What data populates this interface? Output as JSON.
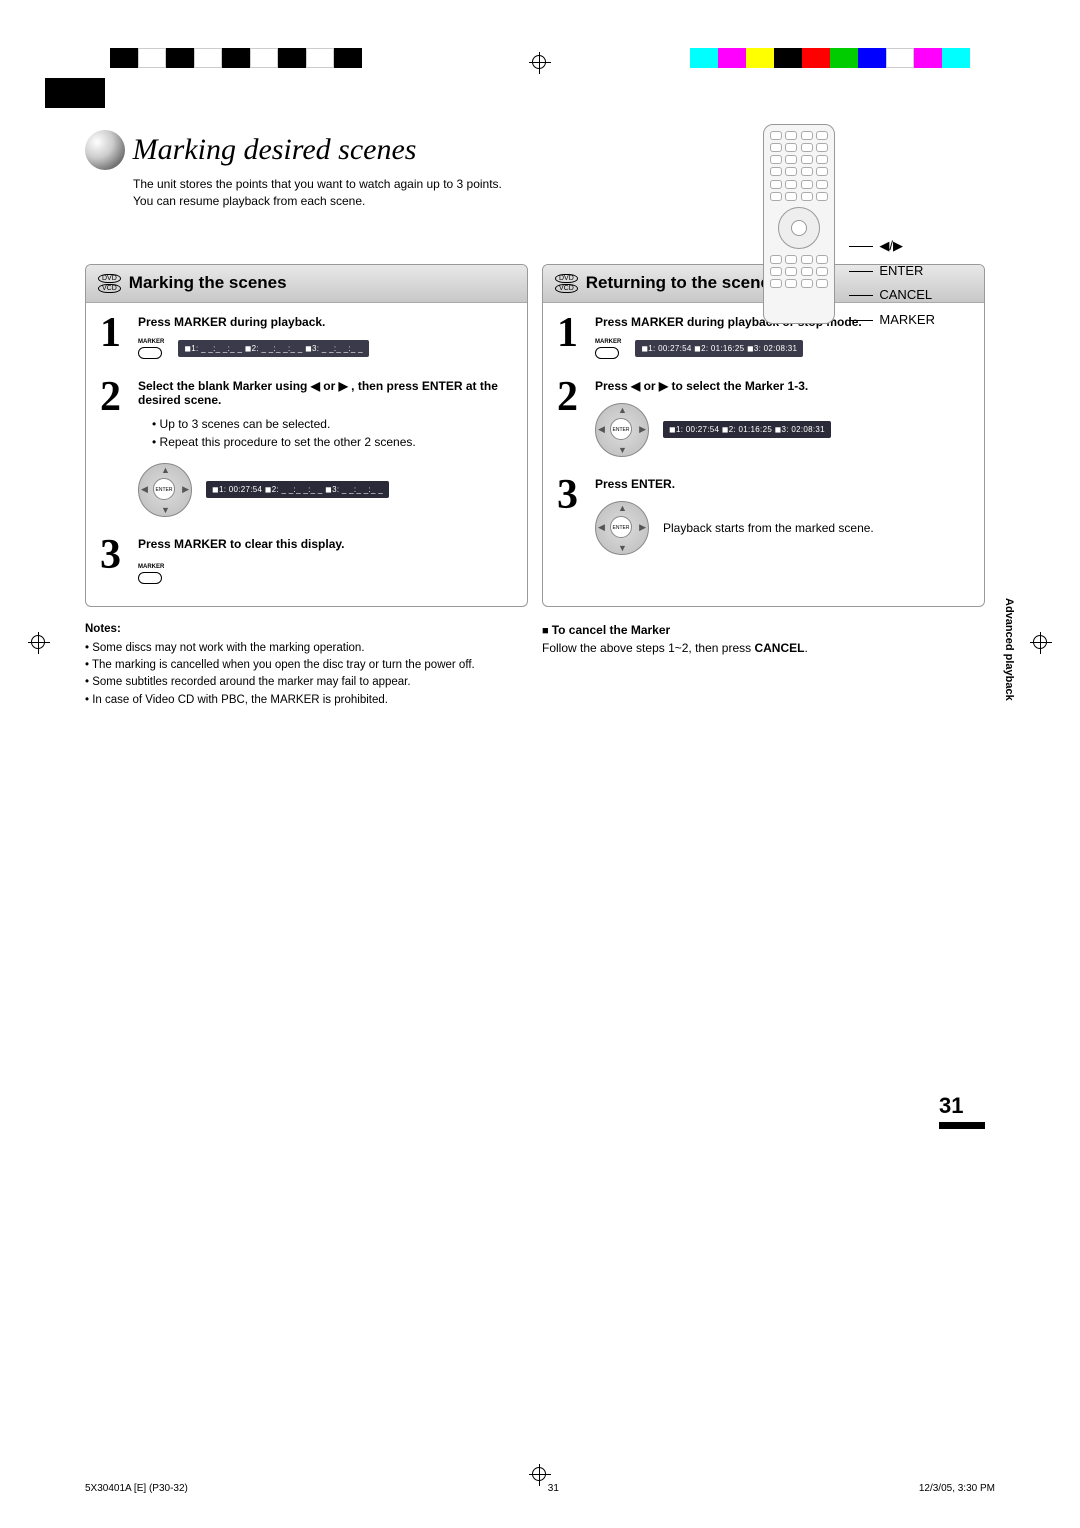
{
  "colorbar_colors": [
    "#000000",
    "#ffffff",
    "#000000",
    "#ffffff",
    "#000000",
    "#ffffff",
    "#000000",
    "#ffffff",
    "#000000"
  ],
  "colorbar_colors_right": [
    "#00ffff",
    "#ff00ff",
    "#ffff00",
    "#000000",
    "#ff0000",
    "#00ff00",
    "#0000ff",
    "#ffffff",
    "#ff00ff",
    "#00ffff"
  ],
  "title": "Marking desired scenes",
  "intro_line1": "The unit stores the points that you want to watch again up to 3 points.",
  "intro_line2": "You can resume playback from each scene.",
  "remote_labels": {
    "arrow": "◀/▶",
    "enter": "ENTER",
    "cancel": "CANCEL",
    "marker": "MARKER"
  },
  "left": {
    "badge_top": "DVD",
    "badge_bot": "VCD",
    "title": "Marking the scenes",
    "s1_title": "Press MARKER during playback.",
    "s1_display": "◼1: _ _:_ _:_ _ ◼2: _ _:_ _:_ _ ◼3: _ _:_ _:_ _",
    "s2_title": "Select the blank Marker using ◀ or ▶ , then press ENTER at the desired scene.",
    "s2_b1": "Up to 3 scenes can be selected.",
    "s2_b2": "Repeat this procedure to set the other 2 scenes.",
    "s2_display": "◼1: 00:27:54 ◼2: _ _:_ _:_ _ ◼3: _ _:_ _:_ _",
    "s3_title": "Press MARKER to clear this display."
  },
  "right": {
    "badge_top": "DVD",
    "badge_bot": "VCD",
    "title": "Returning to the scenes",
    "s1_title": "Press MARKER during playback or stop mode.",
    "s1_display": "◼1: 00:27:54 ◼2: 01:16:25 ◼3: 02:08:31",
    "s2_title": "Press ◀ or ▶ to select the Marker 1-3.",
    "s2_display": "◼1: 00:27:54 ◼2: 01:16:25 ◼3: 02:08:31",
    "s3_title": "Press ENTER.",
    "s3_body": "Playback starts from the marked scene."
  },
  "notes_title": "Notes:",
  "notes": [
    "Some discs may not work with the marking operation.",
    "The marking is cancelled when you open the disc tray or turn the power off.",
    "Some subtitles recorded around the marker may fail to appear.",
    "In case of Video CD with PBC, the MARKER is prohibited."
  ],
  "cancel_title": "To cancel the Marker",
  "cancel_body_1": "Follow the above steps 1~2, then press ",
  "cancel_body_2": "CANCEL",
  "cancel_body_3": ".",
  "side_text": "Advanced playback",
  "page_number": "31",
  "footer_left": "5X30401A [E] (P30-32)",
  "footer_mid": "31",
  "footer_right": "12/3/05, 3:30 PM",
  "marker_label": "MARKER",
  "enter_label": "ENTER"
}
